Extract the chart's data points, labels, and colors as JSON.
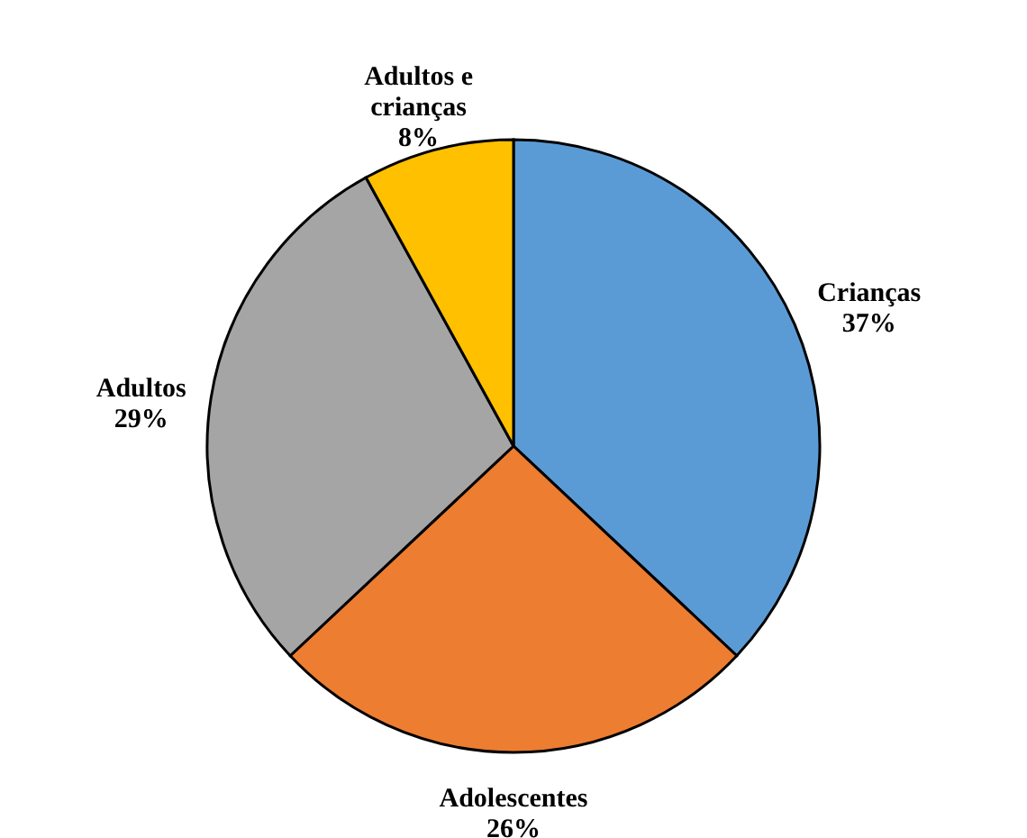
{
  "chart_data": {
    "type": "pie",
    "categories": [
      "Crianças",
      "Adolescentes",
      "Adultos",
      "Adultos e crianças"
    ],
    "values": [
      37,
      26,
      29,
      8
    ],
    "value_labels": [
      "37%",
      "26%",
      "29%",
      "8%"
    ],
    "colors": [
      "#5b9bd5",
      "#ed7d31",
      "#a5a5a5",
      "#ffc000"
    ]
  }
}
